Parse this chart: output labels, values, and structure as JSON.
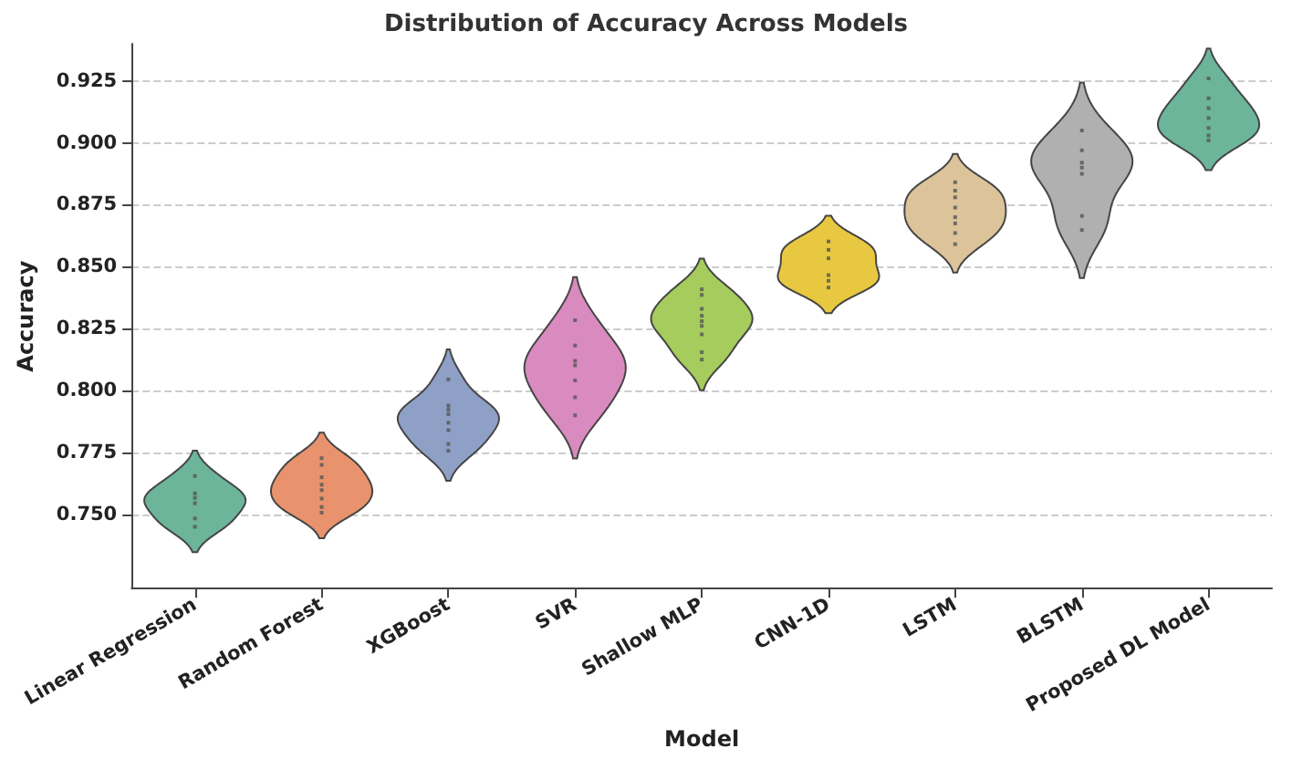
{
  "chart_data": {
    "type": "scatter",
    "title": "Distribution of Accuracy Across Models",
    "xlabel": "Model",
    "ylabel": "Accuracy",
    "categories": [
      "Linear Regression",
      "Random Forest",
      "XGBoost",
      "SVR",
      "Shallow MLP",
      "CNN-1D",
      "LSTM",
      "BLSTM",
      "Proposed DL Model"
    ],
    "colors": [
      "#6cb59a",
      "#e8936e",
      "#8fa0c7",
      "#d98bc0",
      "#a5cc5c",
      "#e8c840",
      "#dcc39a",
      "#b0b0b0",
      "#6cb59a"
    ],
    "ylim": [
      0.72,
      0.94
    ],
    "yticks": [
      {
        "value": 0.75,
        "label": "0.750"
      },
      {
        "value": 0.775,
        "label": "0.775"
      },
      {
        "value": 0.8,
        "label": "0.800"
      },
      {
        "value": 0.825,
        "label": "0.825"
      },
      {
        "value": 0.85,
        "label": "0.850"
      },
      {
        "value": 0.875,
        "label": "0.875"
      },
      {
        "value": 0.9,
        "label": "0.900"
      },
      {
        "value": 0.925,
        "label": "0.925"
      }
    ],
    "grid": "y",
    "marker": "square",
    "series": [
      {
        "color": "#555555",
        "x": [
          "Linear Regression",
          "Linear Regression",
          "Linear Regression",
          "Linear Regression",
          "Linear Regression",
          "Linear Regression",
          "Random Forest",
          "Random Forest",
          "Random Forest",
          "Random Forest",
          "Random Forest",
          "Random Forest",
          "Random Forest",
          "Random Forest",
          "XGBoost",
          "XGBoost",
          "XGBoost",
          "XGBoost",
          "XGBoost",
          "XGBoost",
          "XGBoost",
          "XGBoost",
          "SVR",
          "SVR",
          "SVR",
          "SVR",
          "SVR",
          "SVR",
          "SVR",
          "Shallow MLP",
          "Shallow MLP",
          "Shallow MLP",
          "Shallow MLP",
          "Shallow MLP",
          "Shallow MLP",
          "Shallow MLP",
          "Shallow MLP",
          "Shallow MLP",
          "CNN-1D",
          "CNN-1D",
          "CNN-1D",
          "CNN-1D",
          "CNN-1D",
          "CNN-1D",
          "LSTM",
          "LSTM",
          "LSTM",
          "LSTM",
          "LSTM",
          "LSTM",
          "LSTM",
          "LSTM",
          "BLSTM",
          "BLSTM",
          "BLSTM",
          "BLSTM",
          "BLSTM",
          "BLSTM",
          "BLSTM",
          "Proposed DL Model",
          "Proposed DL Model",
          "Proposed DL Model",
          "Proposed DL Model",
          "Proposed DL Model",
          "Proposed DL Model",
          "Proposed DL Model"
        ],
        "values": [
          0.7655,
          0.7585,
          0.7567,
          0.7545,
          0.7484,
          0.745,
          0.7727,
          0.77,
          0.765,
          0.762,
          0.7598,
          0.7564,
          0.753,
          0.7507,
          0.8045,
          0.7939,
          0.7923,
          0.7905,
          0.787,
          0.784,
          0.7784,
          0.7757,
          0.8284,
          0.8182,
          0.812,
          0.8102,
          0.8041,
          0.7973,
          0.79,
          0.8409,
          0.8386,
          0.833,
          0.8302,
          0.828,
          0.8261,
          0.8227,
          0.8155,
          0.8125,
          0.8602,
          0.8568,
          0.8534,
          0.8466,
          0.8443,
          0.8416,
          0.8841,
          0.8807,
          0.878,
          0.8739,
          0.87,
          0.8675,
          0.8636,
          0.8591,
          0.905,
          0.897,
          0.892,
          0.89,
          0.8875,
          0.8705,
          0.8648,
          0.926,
          0.918,
          0.914,
          0.91,
          0.906,
          0.903,
          0.901
        ]
      }
    ]
  }
}
